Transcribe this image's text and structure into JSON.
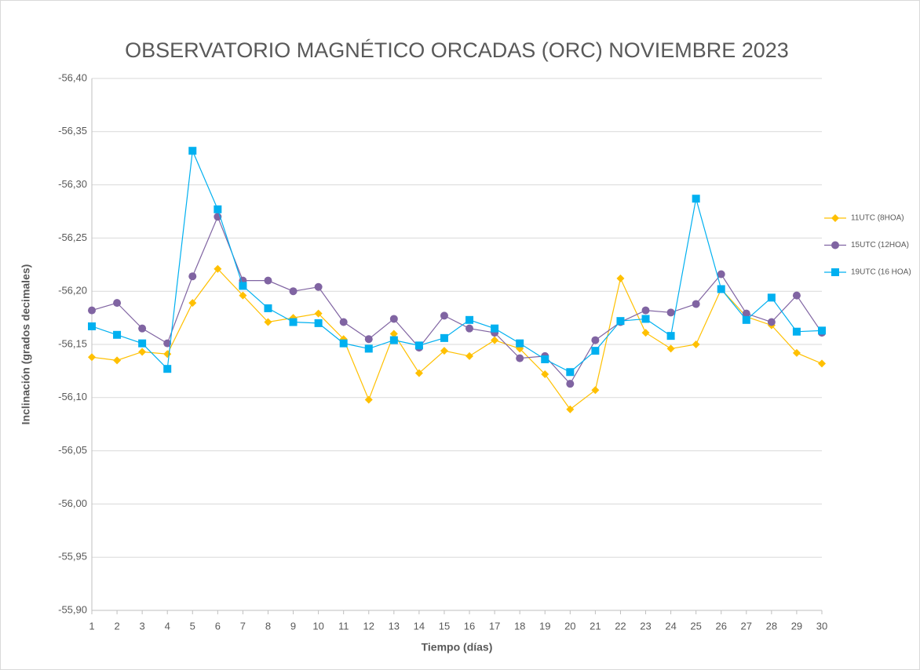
{
  "chart_data": {
    "type": "line",
    "title": "OBSERVATORIO MAGNÉTICO ORCADAS (ORC) NOVIEMBRE 2023",
    "x_label": "Tiempo (días)",
    "y_label": "Inclinación (grados decimales)",
    "x": [
      1,
      2,
      3,
      4,
      5,
      6,
      7,
      8,
      9,
      10,
      11,
      12,
      13,
      14,
      15,
      16,
      17,
      18,
      19,
      20,
      21,
      22,
      23,
      24,
      25,
      26,
      27,
      28,
      29,
      30
    ],
    "xlim": [
      1,
      30
    ],
    "xticks": [
      1,
      2,
      3,
      4,
      5,
      6,
      7,
      8,
      9,
      10,
      11,
      12,
      13,
      14,
      15,
      16,
      17,
      18,
      19,
      20,
      21,
      22,
      23,
      24,
      25,
      26,
      27,
      28,
      29,
      30
    ],
    "ylim": [
      -55.9,
      -56.4
    ],
    "yticks": [
      {
        "value": -56.4,
        "label": "-56,40"
      },
      {
        "value": -56.35,
        "label": "-56,35"
      },
      {
        "value": -56.3,
        "label": "-56,30"
      },
      {
        "value": -56.25,
        "label": "-56,25"
      },
      {
        "value": -56.2,
        "label": "-56,20"
      },
      {
        "value": -56.15,
        "label": "-56,15"
      },
      {
        "value": -56.1,
        "label": "-56,10"
      },
      {
        "value": -56.05,
        "label": "-56,05"
      },
      {
        "value": -56.0,
        "label": "-56,00"
      },
      {
        "value": -55.95,
        "label": "-55,95"
      },
      {
        "value": -55.9,
        "label": "-55,90"
      }
    ],
    "grid": true,
    "legend": "right",
    "series": [
      {
        "name": "11UTC (8HOA)",
        "color": "#FFC000",
        "marker": "diamond",
        "values": [
          -56.138,
          -56.135,
          -56.143,
          -56.141,
          -56.189,
          -56.221,
          -56.196,
          -56.171,
          -56.175,
          -56.179,
          -56.155,
          -56.098,
          -56.16,
          -56.123,
          -56.144,
          -56.139,
          -56.154,
          -56.146,
          -56.122,
          -56.089,
          -56.107,
          -56.212,
          -56.161,
          -56.146,
          -56.15,
          -56.202,
          -56.176,
          -56.168,
          -56.142,
          -56.132
        ]
      },
      {
        "name": "15UTC (12HOA)",
        "color": "#8064A2",
        "marker": "circle",
        "values": [
          -56.182,
          -56.189,
          -56.165,
          -56.151,
          -56.214,
          -56.27,
          -56.21,
          -56.21,
          -56.2,
          -56.204,
          -56.171,
          -56.155,
          -56.174,
          -56.147,
          -56.177,
          -56.165,
          -56.161,
          -56.137,
          -56.139,
          -56.113,
          -56.154,
          -56.171,
          -56.182,
          -56.18,
          -56.188,
          -56.216,
          -56.179,
          -56.171,
          -56.196,
          -56.161
        ]
      },
      {
        "name": "19UTC (16 HOA)",
        "color": "#00B0F0",
        "marker": "square",
        "values": [
          -56.167,
          -56.159,
          -56.151,
          -56.127,
          -56.332,
          -56.277,
          -56.205,
          -56.184,
          -56.171,
          -56.17,
          -56.151,
          -56.146,
          -56.154,
          -56.149,
          -56.156,
          -56.173,
          -56.165,
          -56.151,
          -56.136,
          -56.124,
          -56.144,
          -56.172,
          -56.174,
          -56.158,
          -56.287,
          -56.202,
          -56.173,
          -56.194,
          -56.162,
          -56.163
        ]
      }
    ]
  }
}
